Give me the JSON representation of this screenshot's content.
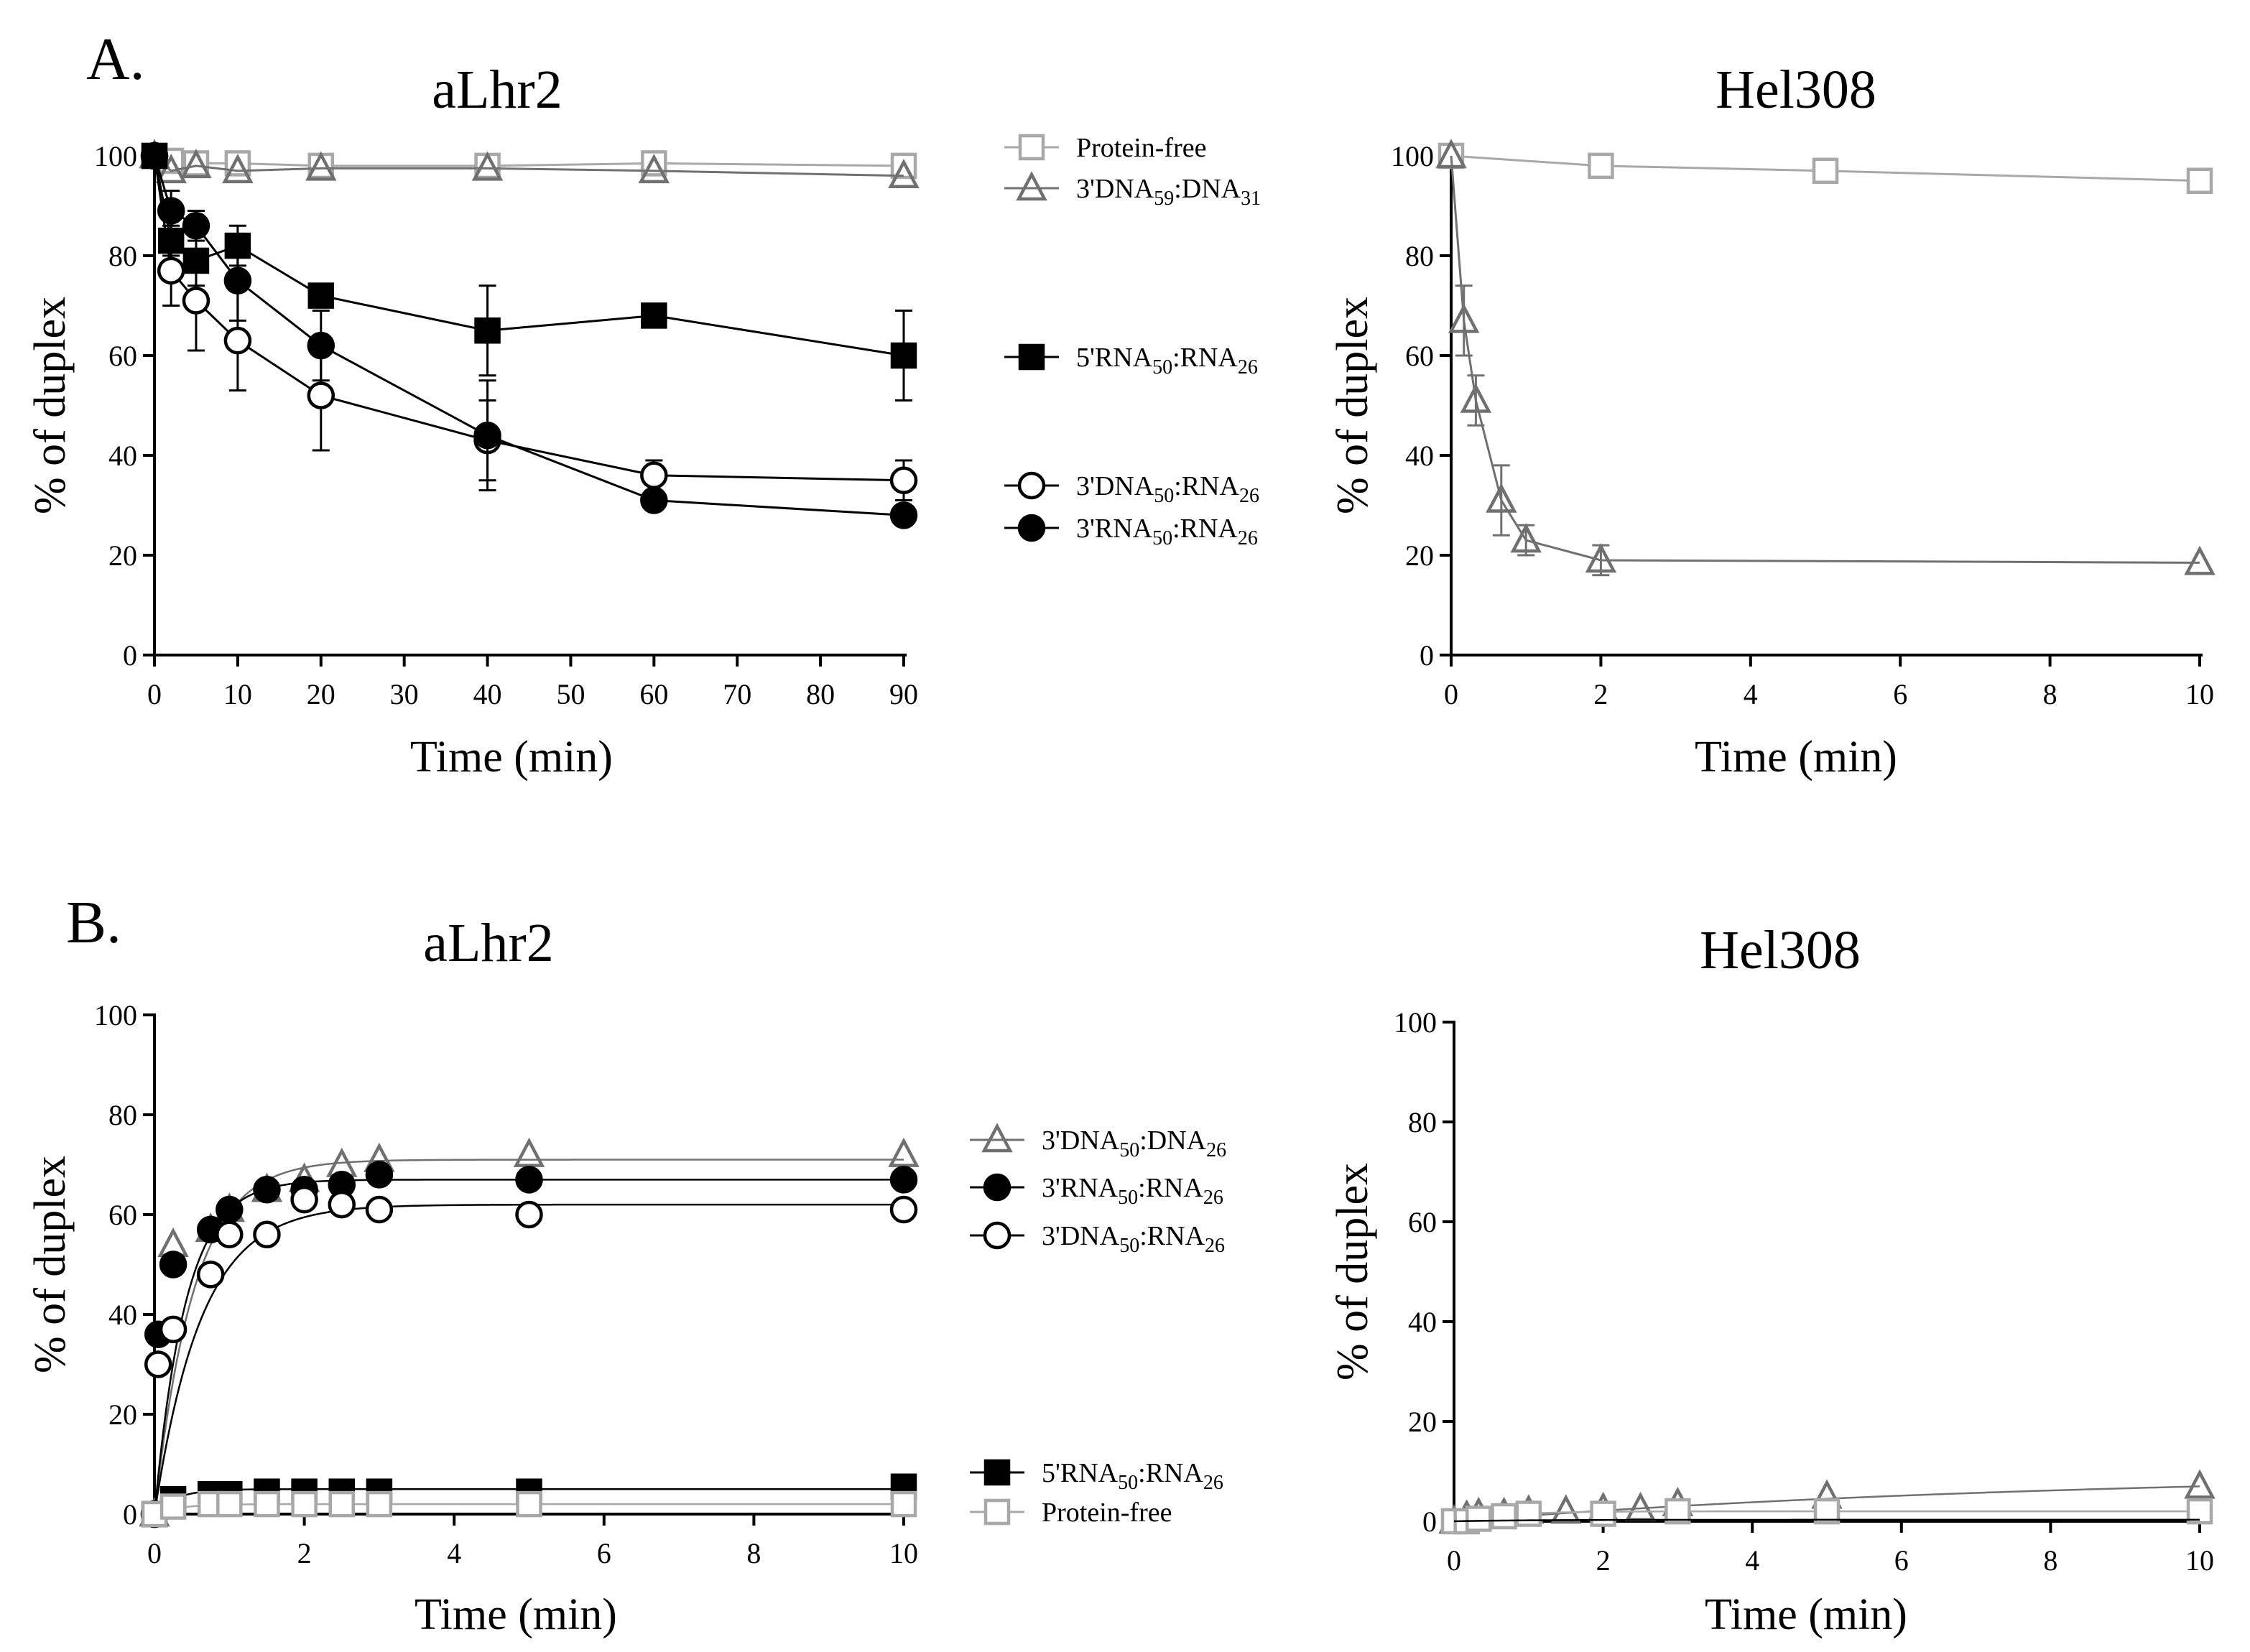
{
  "figure": {
    "panel_labels": {
      "A": "A.",
      "B": "B."
    },
    "colors": {
      "black": "#000000",
      "dark_gray": "#707070",
      "light_gray": "#a8a8a8"
    }
  },
  "chart_data": [
    {
      "id": "A-aLhr2",
      "type": "line",
      "title": "aLhr2",
      "xlabel": "Time (min)",
      "ylabel": "% of duplex",
      "xlim": [
        0,
        90
      ],
      "ylim": [
        0,
        100
      ],
      "xticks": [
        0,
        10,
        20,
        30,
        40,
        50,
        60,
        70,
        80,
        90
      ],
      "yticks": [
        0,
        20,
        40,
        60,
        80,
        100
      ],
      "legend": [
        {
          "label": "Protein-free",
          "base": "Protein-free",
          "subs": [],
          "marker": "square-open",
          "color": "#a8a8a8"
        },
        {
          "label": "3'DNA59:DNA31",
          "base": "3'DNA",
          "subs": [
            "59",
            ":DNA",
            "31"
          ],
          "marker": "triangle-open",
          "color": "#707070"
        },
        {
          "label": "5'RNA50:RNA26",
          "base": "5'RNA",
          "subs": [
            "50",
            ":RNA",
            "26"
          ],
          "marker": "square-filled",
          "color": "#000000"
        },
        {
          "label": "3'DNA50:RNA26",
          "base": "3'DNA",
          "subs": [
            "50",
            ":RNA",
            "26"
          ],
          "marker": "circle-open",
          "color": "#000000"
        },
        {
          "label": "3'RNA50:RNA26",
          "base": "3'RNA",
          "subs": [
            "50",
            ":RNA",
            "26"
          ],
          "marker": "circle-filled",
          "color": "#000000"
        }
      ],
      "series": [
        {
          "name": "Protein-free",
          "marker": "square-open",
          "color": "#a8a8a8",
          "x": [
            0,
            2,
            5,
            10,
            20,
            40,
            60,
            90
          ],
          "y": [
            100,
            99,
            98.5,
            98.5,
            98,
            98,
            98.5,
            98
          ],
          "err": []
        },
        {
          "name": "3'DNA59:DNA31",
          "marker": "triangle-open",
          "color": "#707070",
          "x": [
            0,
            2,
            5,
            10,
            20,
            40,
            60,
            90
          ],
          "y": [
            100,
            97,
            98,
            97,
            97.5,
            97.5,
            97,
            96
          ],
          "err": []
        },
        {
          "name": "5'RNA50:RNA26",
          "marker": "square-filled",
          "color": "#000000",
          "x": [
            0,
            2,
            5,
            10,
            20,
            40,
            60,
            90
          ],
          "y": [
            100,
            83,
            79,
            82,
            72,
            65,
            68,
            60
          ],
          "err": [
            0,
            3,
            5,
            4,
            2,
            9,
            1,
            9
          ]
        },
        {
          "name": "3'DNA50:RNA26",
          "marker": "circle-open",
          "color": "#000000",
          "x": [
            0,
            2,
            5,
            10,
            20,
            40,
            60,
            90
          ],
          "y": [
            100,
            77,
            71,
            63,
            52,
            43,
            36,
            35
          ],
          "err": [
            0,
            7,
            10,
            10,
            11,
            8,
            3,
            4
          ]
        },
        {
          "name": "3'RNA50:RNA26",
          "marker": "circle-filled",
          "color": "#000000",
          "x": [
            0,
            2,
            5,
            10,
            20,
            40,
            60,
            90
          ],
          "y": [
            100,
            89,
            86,
            75,
            62,
            44,
            31,
            28
          ],
          "err": [
            0,
            4,
            3,
            8,
            7,
            11,
            2,
            1
          ]
        }
      ]
    },
    {
      "id": "A-Hel308",
      "type": "line",
      "title": "Hel308",
      "xlabel": "Time (min)",
      "ylabel": "% of duplex",
      "xlim": [
        0,
        10
      ],
      "ylim": [
        0,
        100
      ],
      "xticks": [
        0,
        2,
        4,
        6,
        8,
        10
      ],
      "yticks": [
        0,
        20,
        40,
        60,
        80,
        100
      ],
      "series": [
        {
          "name": "Protein-free",
          "marker": "square-open",
          "color": "#a8a8a8",
          "x": [
            0,
            2,
            5,
            10
          ],
          "y": [
            100,
            98,
            97,
            95
          ],
          "err": []
        },
        {
          "name": "3'DNA59:DNA31",
          "marker": "triangle-open",
          "color": "#707070",
          "x": [
            0,
            0.17,
            0.33,
            0.67,
            1,
            2,
            10
          ],
          "y": [
            100,
            67,
            51,
            31,
            23,
            19,
            18.5
          ],
          "err": [
            0,
            7,
            5,
            7,
            3,
            3,
            0
          ]
        }
      ]
    },
    {
      "id": "B-aLhr2",
      "type": "scatter",
      "title": "aLhr2",
      "xlabel": "Time (min)",
      "ylabel": "% of duplex",
      "xlim": [
        0,
        10
      ],
      "ylim": [
        0,
        100
      ],
      "xticks": [
        0,
        2,
        4,
        6,
        8,
        10
      ],
      "yticks": [
        0,
        20,
        40,
        60,
        80,
        100
      ],
      "legend": [
        {
          "label": "3'DNA50:DNA26",
          "base": "3'DNA",
          "subs": [
            "50",
            ":DNA",
            "26"
          ],
          "marker": "triangle-open",
          "color": "#707070"
        },
        {
          "label": "3'RNA50:RNA26",
          "base": "3'RNA",
          "subs": [
            "50",
            ":RNA",
            "26"
          ],
          "marker": "circle-filled",
          "color": "#000000"
        },
        {
          "label": "3'DNA50:RNA26",
          "base": "3'DNA",
          "subs": [
            "50",
            ":RNA",
            "26"
          ],
          "marker": "circle-open",
          "color": "#000000"
        },
        {
          "label": "5'RNA50:RNA26",
          "base": "5'RNA",
          "subs": [
            "50",
            ":RNA",
            "26"
          ],
          "marker": "square-filled",
          "color": "#000000"
        },
        {
          "label": "Protein-free",
          "base": "Protein-free",
          "subs": [],
          "marker": "square-open",
          "color": "#a8a8a8"
        }
      ],
      "series": [
        {
          "name": "3'DNA50:DNA26",
          "marker": "triangle-open",
          "color": "#707070",
          "x": [
            0,
            0.25,
            0.75,
            1,
            1.5,
            2,
            2.5,
            3,
            5,
            10
          ],
          "y": [
            0,
            54,
            57,
            61,
            65,
            67,
            70,
            71,
            72,
            72
          ],
          "fit": {
            "a": 71,
            "k": 1.9
          }
        },
        {
          "name": "3'RNA50:RNA26",
          "marker": "circle-filled",
          "color": "#000000",
          "x": [
            0,
            0.05,
            0.25,
            0.75,
            1,
            1.5,
            2,
            2.5,
            3,
            5,
            10
          ],
          "y": [
            0,
            36,
            50,
            57,
            61,
            65,
            65,
            66,
            68,
            67,
            67
          ],
          "fit": {
            "a": 67,
            "k": 2.4
          }
        },
        {
          "name": "3'DNA50:RNA26",
          "marker": "circle-open",
          "color": "#000000",
          "x": [
            0,
            0.05,
            0.25,
            0.75,
            1,
            1.5,
            2,
            2.5,
            3,
            5,
            10
          ],
          "y": [
            0,
            30,
            37,
            48,
            56,
            56,
            63,
            62,
            61,
            60,
            61
          ],
          "fit": {
            "a": 62,
            "k": 1.6
          }
        },
        {
          "name": "5'RNA50:RNA26",
          "marker": "square-filled",
          "color": "#000000",
          "x": [
            0,
            0.25,
            0.75,
            1,
            1.5,
            2,
            2.5,
            3,
            5,
            10
          ],
          "y": [
            0,
            3,
            4,
            4,
            4.5,
            4.5,
            4.5,
            4.5,
            4.5,
            5.5
          ],
          "fit": {
            "a": 5,
            "k": 3.5
          }
        },
        {
          "name": "Protein-free",
          "marker": "square-open",
          "color": "#a8a8a8",
          "x": [
            0,
            0.25,
            0.75,
            1,
            1.5,
            2,
            2.5,
            3,
            5,
            10
          ],
          "y": [
            0,
            1.5,
            2,
            2,
            2,
            2,
            2,
            2,
            2,
            2
          ],
          "fit": {
            "a": 2,
            "k": 3
          }
        }
      ]
    },
    {
      "id": "B-Hel308",
      "type": "scatter",
      "title": "Hel308",
      "xlabel": "Time (min)",
      "ylabel": "% of duplex",
      "xlim": [
        0,
        10
      ],
      "ylim": [
        0,
        100
      ],
      "xticks": [
        0,
        2,
        4,
        6,
        8,
        10
      ],
      "yticks": [
        0,
        20,
        40,
        60,
        80,
        100
      ],
      "series": [
        {
          "name": "3'DNA50:DNA26",
          "marker": "triangle-open",
          "color": "#707070",
          "x": [
            0,
            0.17,
            0.33,
            0.67,
            1,
            1.5,
            2,
            2.5,
            3,
            5,
            10
          ],
          "y": [
            0,
            1,
            1.5,
            1.5,
            2,
            2,
            2.5,
            2.5,
            3.5,
            5,
            7
          ],
          "fit": {
            "a": 10,
            "k": 0.12
          }
        },
        {
          "name": "Protein-free",
          "marker": "square-open",
          "color": "#a8a8a8",
          "x": [
            0,
            0.17,
            0.33,
            0.67,
            1,
            2,
            3,
            5,
            10
          ],
          "y": [
            0,
            0,
            0.5,
            1,
            1.5,
            1.5,
            2,
            2,
            2
          ],
          "fit": {
            "a": 2,
            "k": 1.5
          }
        },
        {
          "name": "3'RNA50:RNA26",
          "marker": "none",
          "color": "#000000",
          "x": [],
          "y": [],
          "fit": {
            "a": 0.3,
            "k": 1
          }
        }
      ]
    }
  ]
}
